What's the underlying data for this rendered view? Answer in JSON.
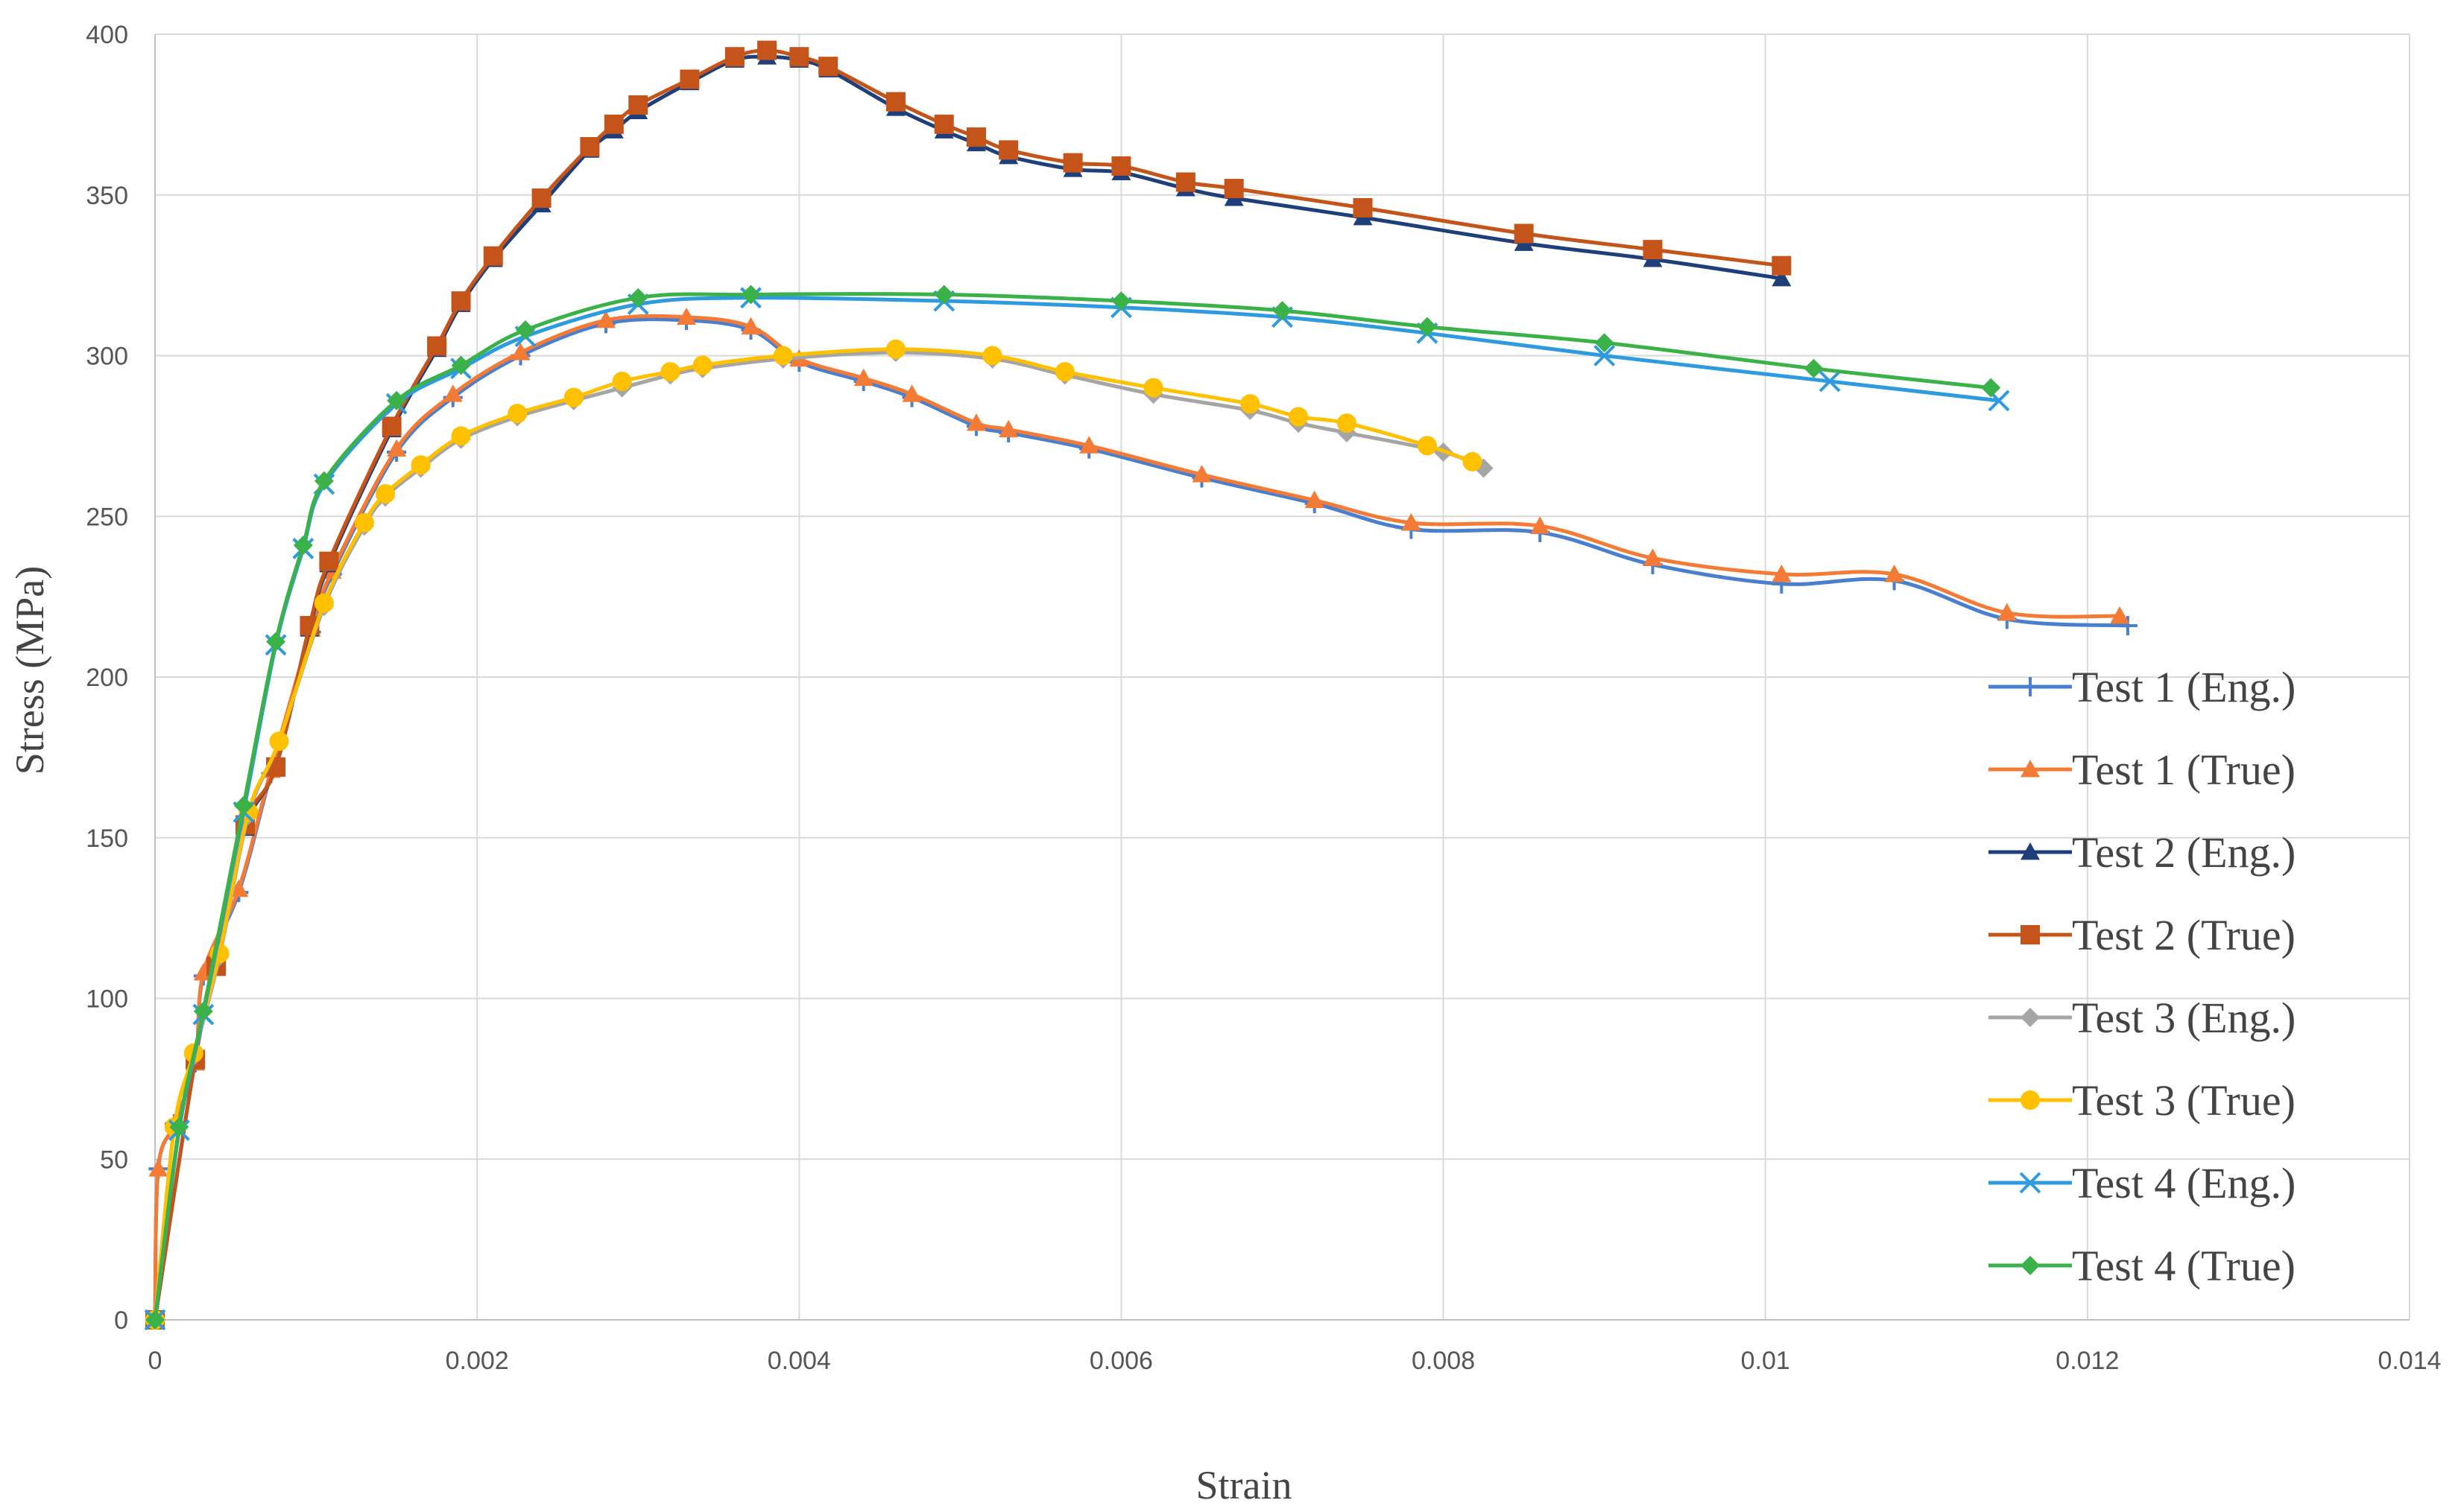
{
  "chart_data": {
    "type": "line",
    "title": "",
    "xlabel": "Strain",
    "ylabel": "Stress (MPa)",
    "xlim": [
      0,
      0.014
    ],
    "ylim": [
      0,
      400
    ],
    "x_ticks": [
      "0",
      "0.002",
      "0.004",
      "0.006",
      "0.008",
      "0.01",
      "0.012",
      "0.014"
    ],
    "y_ticks": [
      "0",
      "50",
      "100",
      "150",
      "200",
      "250",
      "300",
      "350",
      "400"
    ],
    "grid": true,
    "legend_position": "right",
    "series": [
      {
        "name": "Test 1 (Eng.)",
        "color": "#4a7fd0",
        "marker": "plus",
        "x": [
          0,
          2e-05,
          0.00012,
          0.00025,
          0.0003,
          0.00052,
          0.00072,
          0.00097,
          0.0011,
          0.0015,
          0.00185,
          0.00227,
          0.0028,
          0.0033,
          0.0037,
          0.004,
          0.0044,
          0.0047,
          0.0051,
          0.0053,
          0.0058,
          0.0065,
          0.0072,
          0.0078,
          0.0086,
          0.0093,
          0.0101,
          0.0108,
          0.0115,
          0.01225
        ],
        "y": [
          0,
          47,
          61,
          80,
          107,
          133,
          170,
          214,
          232,
          270,
          287,
          300,
          310,
          311,
          308,
          298,
          292,
          287,
          278,
          276,
          271,
          262,
          254,
          246,
          245,
          235,
          229,
          230,
          218,
          216
        ]
      },
      {
        "name": "Test 1 (True)",
        "color": "#f47b36",
        "marker": "triangle",
        "x": [
          0,
          2e-05,
          0.00012,
          0.00025,
          0.0003,
          0.00052,
          0.00072,
          0.00097,
          0.0011,
          0.0015,
          0.00185,
          0.00227,
          0.0028,
          0.0033,
          0.0037,
          0.004,
          0.0044,
          0.0047,
          0.0051,
          0.0053,
          0.0058,
          0.0065,
          0.0072,
          0.0078,
          0.0086,
          0.0093,
          0.0101,
          0.0108,
          0.0115,
          0.0122
        ],
        "y": [
          0,
          47,
          61,
          80,
          108,
          134,
          171,
          215,
          233,
          271,
          288,
          301,
          311,
          312,
          309,
          299,
          293,
          288,
          279,
          277,
          272,
          263,
          255,
          248,
          247,
          237,
          232,
          232,
          220,
          219
        ]
      },
      {
        "name": "Test 2 (Eng.)",
        "color": "#1f3f7a",
        "marker": "triangle",
        "x": [
          0,
          0.00025,
          0.00038,
          0.00056,
          0.00075,
          0.00096,
          0.00108,
          0.00147,
          0.00175,
          0.0019,
          0.0021,
          0.0024,
          0.0027,
          0.00285,
          0.003,
          0.00332,
          0.0036,
          0.0038,
          0.004,
          0.00418,
          0.0046,
          0.0049,
          0.0051,
          0.0053,
          0.0057,
          0.006,
          0.0064,
          0.0067,
          0.0075,
          0.0085,
          0.0093,
          0.0101
        ],
        "y": [
          0,
          81,
          110,
          153,
          172,
          215,
          235,
          277,
          302,
          316,
          330,
          347,
          364,
          370,
          376,
          385,
          392,
          393,
          392,
          389,
          377,
          370,
          366,
          362,
          358,
          357,
          352,
          349,
          343,
          335,
          330,
          324
        ]
      },
      {
        "name": "Test 2 (True)",
        "color": "#c5541b",
        "marker": "square",
        "x": [
          0,
          0.00025,
          0.00038,
          0.00056,
          0.00075,
          0.00096,
          0.00108,
          0.00147,
          0.00175,
          0.0019,
          0.0021,
          0.0024,
          0.0027,
          0.00285,
          0.003,
          0.00332,
          0.0036,
          0.0038,
          0.004,
          0.00418,
          0.0046,
          0.0049,
          0.0051,
          0.0053,
          0.0057,
          0.006,
          0.0064,
          0.0067,
          0.0075,
          0.0085,
          0.0093,
          0.0101
        ],
        "y": [
          0,
          81,
          110,
          154,
          172,
          216,
          236,
          278,
          303,
          317,
          331,
          349,
          365,
          372,
          378,
          386,
          393,
          395,
          393,
          390,
          379,
          372,
          368,
          364,
          360,
          359,
          354,
          352,
          346,
          338,
          333,
          328
        ]
      },
      {
        "name": "Test 3 (Eng.)",
        "color": "#a5a5a5",
        "marker": "diamond",
        "x": [
          0,
          0.00012,
          0.00024,
          0.0004,
          0.00058,
          0.00077,
          0.00105,
          0.0013,
          0.00143,
          0.00165,
          0.0019,
          0.00225,
          0.0026,
          0.0029,
          0.0032,
          0.0034,
          0.0039,
          0.0046,
          0.0052,
          0.00565,
          0.0062,
          0.0068,
          0.0071,
          0.0074,
          0.008,
          0.00825
        ],
        "y": [
          0,
          60,
          82,
          113,
          157,
          180,
          222,
          247,
          256,
          265,
          274,
          281,
          286,
          290,
          294,
          296,
          299,
          301,
          299,
          294,
          288,
          283,
          279,
          276,
          270,
          265
        ]
      },
      {
        "name": "Test 3 (True)",
        "color": "#ffc000",
        "marker": "circle",
        "x": [
          0,
          0.00012,
          0.00024,
          0.0004,
          0.00058,
          0.00077,
          0.00105,
          0.0013,
          0.00143,
          0.00165,
          0.0019,
          0.00225,
          0.0026,
          0.0029,
          0.0032,
          0.0034,
          0.0039,
          0.0046,
          0.0052,
          0.00565,
          0.0062,
          0.0068,
          0.0071,
          0.0074,
          0.0079,
          0.00818
        ],
        "y": [
          0,
          60,
          83,
          114,
          158,
          180,
          223,
          248,
          257,
          266,
          275,
          282,
          287,
          292,
          295,
          297,
          300,
          302,
          300,
          295,
          290,
          285,
          281,
          279,
          272,
          267
        ]
      },
      {
        "name": "Test 4 (Eng.)",
        "color": "#2e9be0",
        "marker": "x",
        "x": [
          0,
          0.00015,
          0.0003,
          0.00055,
          0.00075,
          0.00092,
          0.00105,
          0.0015,
          0.0019,
          0.0023,
          0.003,
          0.0037,
          0.0049,
          0.006,
          0.007,
          0.0079,
          0.009,
          0.0104,
          0.01145
        ],
        "y": [
          0,
          59,
          95,
          158,
          210,
          240,
          260,
          285,
          296,
          306,
          316,
          318,
          317,
          315,
          312,
          307,
          300,
          292,
          286
        ]
      },
      {
        "name": "Test 4 (True)",
        "color": "#3bb14a",
        "marker": "diamond",
        "x": [
          0,
          0.00015,
          0.0003,
          0.00055,
          0.00075,
          0.00092,
          0.00105,
          0.0015,
          0.0019,
          0.0023,
          0.003,
          0.0037,
          0.0049,
          0.006,
          0.007,
          0.0079,
          0.009,
          0.0103,
          0.0114
        ],
        "y": [
          0,
          60,
          96,
          160,
          211,
          241,
          261,
          286,
          297,
          308,
          318,
          319,
          319,
          317,
          314,
          309,
          304,
          296,
          290
        ]
      }
    ]
  }
}
